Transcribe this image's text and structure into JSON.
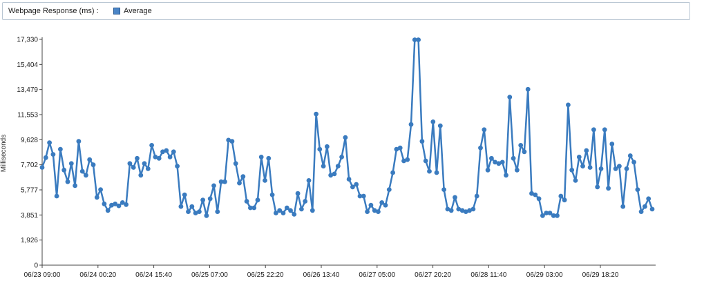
{
  "legend": {
    "title": "Webpage Response (ms) :",
    "series_label": "Average"
  },
  "chart_data": {
    "type": "line",
    "xlabel": "",
    "ylabel": "Milliseconds",
    "ylim": [
      0,
      17330
    ],
    "yticks": [
      0,
      1926,
      3851,
      5777,
      7702,
      9628,
      11553,
      13479,
      15404,
      17330
    ],
    "ytick_labels": [
      "0",
      "1,926",
      "3,851",
      "5,777",
      "7,702",
      "9,628",
      "11,553",
      "13,479",
      "15,404",
      "17,330"
    ],
    "xtick_labels": [
      "06/23 09:00",
      "06/24 00:20",
      "06/24 15:40",
      "06/25 07:00",
      "06/25 22:20",
      "06/26 13:40",
      "06/27 05:00",
      "06/27 20:20",
      "06/28 11:40",
      "06/29 03:00",
      "06/29 18:20"
    ],
    "grid": false,
    "color": "#3a7bbf",
    "series": [
      {
        "name": "Average",
        "values": [
          7500,
          8250,
          9400,
          8500,
          5300,
          8900,
          7300,
          6400,
          7800,
          6100,
          9500,
          7200,
          6900,
          8100,
          7700,
          5200,
          5800,
          4700,
          4200,
          4600,
          4700,
          4550,
          4800,
          4650,
          7800,
          7500,
          8200,
          6900,
          7800,
          7400,
          9200,
          8300,
          8200,
          8700,
          8800,
          8300,
          8700,
          7600,
          4500,
          5400,
          4100,
          4500,
          4000,
          4100,
          5000,
          3800,
          5100,
          6100,
          4100,
          6400,
          6400,
          9600,
          9500,
          7800,
          6300,
          6800,
          4900,
          4400,
          4400,
          5000,
          8300,
          6500,
          8200,
          5400,
          4000,
          4200,
          4000,
          4400,
          4200,
          3900,
          5500,
          4300,
          4900,
          6500,
          4200,
          11600,
          8900,
          7600,
          9100,
          6900,
          7000,
          7600,
          8300,
          9800,
          6600,
          6000,
          6200,
          5300,
          5300,
          4100,
          4600,
          4200,
          4100,
          4800,
          4600,
          5800,
          7100,
          8900,
          9000,
          8000,
          8100,
          10800,
          17300,
          17300,
          9500,
          8000,
          7200,
          11000,
          7100,
          10700,
          5800,
          4300,
          4200,
          5200,
          4300,
          4200,
          4100,
          4200,
          4300,
          5300,
          9000,
          10400,
          7300,
          8200,
          7900,
          7800,
          7900,
          6900,
          12900,
          8200,
          7300,
          9200,
          8700,
          13500,
          5500,
          5400,
          5100,
          3800,
          4000,
          4000,
          3800,
          3800,
          5300,
          5000,
          12300,
          7300,
          6500,
          8300,
          7600,
          8800,
          7500,
          10400,
          6000,
          7400,
          10400,
          5900,
          9300,
          7400,
          7600,
          4500,
          7400,
          8400,
          7900,
          5800,
          4100,
          4500,
          5100,
          4300
        ]
      }
    ]
  }
}
